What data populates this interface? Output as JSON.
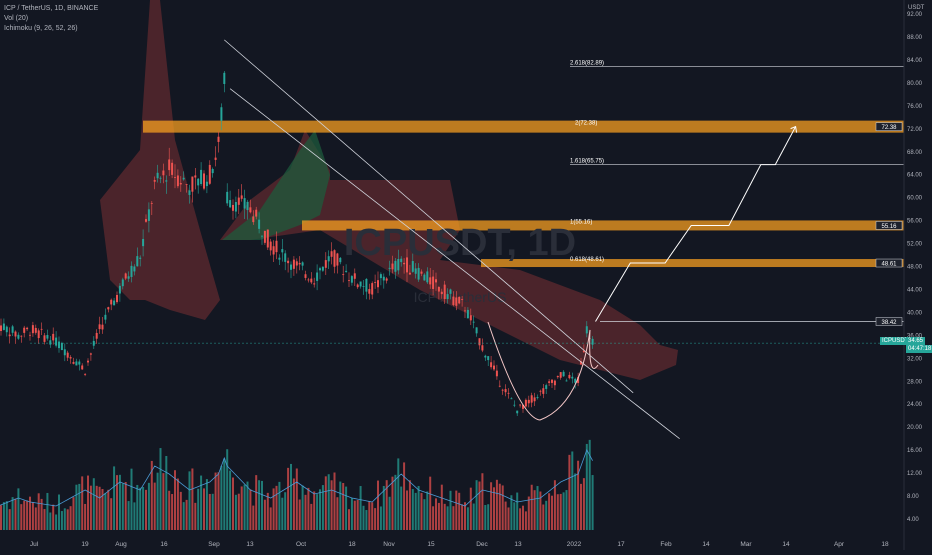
{
  "legend": {
    "symbol": "ICP / TetherUS, 1D, BINANCE",
    "vol": "Vol (20)",
    "ichimoku": "Ichimoku (9, 26, 52, 26)"
  },
  "axis": {
    "currency": "USDT",
    "price_ticks": [
      "92.00",
      "88.00",
      "84.00",
      "80.00",
      "76.00",
      "72.00",
      "68.00",
      "64.00",
      "60.00",
      "56.00",
      "52.00",
      "48.00",
      "44.00",
      "40.00",
      "36.00",
      "32.00",
      "28.00",
      "24.00",
      "20.00",
      "16.00",
      "12.00",
      "8.00",
      "4.00"
    ],
    "date_ticks": [
      "Jul",
      "19",
      "Aug",
      "16",
      "Sep",
      "13",
      "Oct",
      "18",
      "Nov",
      "15",
      "Dec",
      "13",
      "2022",
      "17",
      "Feb",
      "14",
      "Mar",
      "14",
      "Apr",
      "18"
    ]
  },
  "watermark": {
    "big": "ICPUSDT, 1D",
    "small": "ICP / TetherUS"
  },
  "fib_levels": [
    {
      "label": "2.618(82.89)",
      "value": 82.89,
      "price_label": ""
    },
    {
      "label": "2(72.38)",
      "value": 72.38,
      "price_label": "72.38"
    },
    {
      "label": "1.618(65.75)",
      "value": 65.75,
      "price_label": ""
    },
    {
      "label": "1(55.16)",
      "value": 55.16,
      "price_label": "55.16"
    },
    {
      "label": "0.618(48.61)",
      "value": 48.61,
      "price_label": "48.61"
    },
    {
      "label": "",
      "value": 38.42,
      "price_label": "38.42"
    }
  ],
  "last_price": {
    "symbol": "ICPUSDT",
    "value": "34.65",
    "countdown": "04:47:18"
  },
  "colors": {
    "background": "#131722",
    "up": "#26a69a",
    "down": "#ef5350",
    "band": "#f59d20",
    "cloud_bear": "#7a2f33",
    "cloud_bull": "#1e5a3c",
    "trend": "#d1d4dc",
    "projection": "#ffffff",
    "cup": "#f5c8c8",
    "ma": "#4a9bd6"
  },
  "chart_data": {
    "type": "candlestick",
    "title": "ICP / TetherUS, 1D, BINANCE",
    "y_range": [
      4,
      92
    ],
    "price_series": [
      [
        "2021-06-20",
        38
      ],
      [
        "2021-06-27",
        36
      ],
      [
        "2021-07-01",
        37
      ],
      [
        "2021-07-10",
        35
      ],
      [
        "2021-07-20",
        30
      ],
      [
        "2021-07-25",
        37
      ],
      [
        "2021-08-01",
        44
      ],
      [
        "2021-08-08",
        50
      ],
      [
        "2021-08-13",
        62
      ],
      [
        "2021-08-18",
        65
      ],
      [
        "2021-08-25",
        62
      ],
      [
        "2021-09-01",
        64
      ],
      [
        "2021-09-04",
        69
      ],
      [
        "2021-09-06",
        80
      ],
      [
        "2021-09-07",
        60
      ],
      [
        "2021-09-15",
        58
      ],
      [
        "2021-09-22",
        52
      ],
      [
        "2021-10-01",
        48
      ],
      [
        "2021-10-07",
        46
      ],
      [
        "2021-10-13",
        50
      ],
      [
        "2021-10-20",
        46
      ],
      [
        "2021-10-27",
        44
      ],
      [
        "2021-11-06",
        49
      ],
      [
        "2021-11-12",
        47
      ],
      [
        "2021-11-20",
        44
      ],
      [
        "2021-11-28",
        41
      ],
      [
        "2021-12-04",
        34
      ],
      [
        "2021-12-10",
        28
      ],
      [
        "2021-12-16",
        23
      ],
      [
        "2021-12-24",
        26
      ],
      [
        "2021-12-31",
        29
      ],
      [
        "2022-01-06",
        28
      ],
      [
        "2022-01-09",
        37
      ],
      [
        "2022-01-12",
        34.65
      ]
    ],
    "volume_relative": [
      0.3,
      0.4,
      0.35,
      0.3,
      0.5,
      0.4,
      0.6,
      0.5,
      0.8,
      0.7,
      0.5,
      0.6,
      0.7,
      0.9,
      0.8,
      0.5,
      0.4,
      0.6,
      0.45,
      0.5,
      0.4,
      0.35,
      0.7,
      0.5,
      0.4,
      0.3,
      0.5,
      0.45,
      0.35,
      0.4,
      0.6,
      0.7,
      1.0,
      0.8
    ],
    "descending_trendlines": [
      {
        "from": [
          "2021-09-06",
          87.5
        ],
        "to": [
          "2022-01-25",
          26
        ]
      },
      {
        "from": [
          "2021-09-08",
          79
        ],
        "to": [
          "2022-02-10",
          18
        ]
      }
    ],
    "projection_path": [
      [
        "2022-01-12",
        38.42
      ],
      [
        "2022-01-24",
        48.61
      ],
      [
        "2022-02-05",
        48.61
      ],
      [
        "2022-02-14",
        55.16
      ],
      [
        "2022-02-27",
        55.16
      ],
      [
        "2022-03-10",
        65.75
      ],
      [
        "2022-03-15",
        65.75
      ],
      [
        "2022-03-22",
        72.38
      ]
    ],
    "xlabel": "",
    "ylabel": "",
    "grid": false,
    "legend_position": "top-left"
  }
}
